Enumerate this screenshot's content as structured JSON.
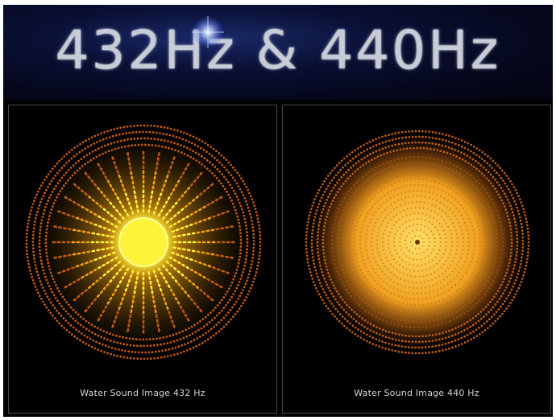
{
  "banner": {
    "title": "432Hz & 440Hz"
  },
  "panels": [
    {
      "caption": "Water Sound Image 432 Hz",
      "colors": {
        "core": "#fff23a",
        "mid": "#f0a010",
        "outer": "#c05a10"
      }
    },
    {
      "caption": "Water Sound Image 440 Hz",
      "colors": {
        "core": "#ffd24a",
        "mid": "#f0a020",
        "outer": "#b65a14"
      }
    }
  ]
}
